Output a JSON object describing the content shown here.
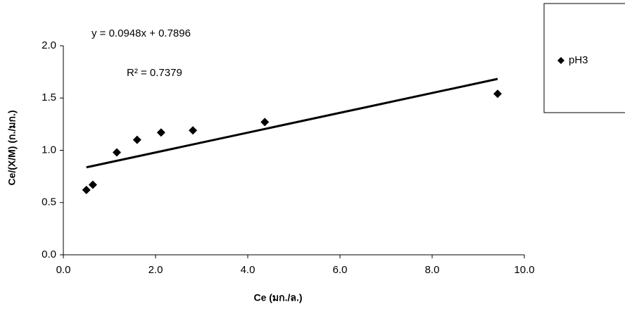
{
  "chart_data": {
    "type": "scatter",
    "x_label": "Ce (มก./ล.)",
    "y_label": "Ce/(X/M) (ก./มก.)",
    "equation": "y = 0.0948x + 0.7896",
    "r_squared": "R² = 0.7379",
    "trendline": {
      "slope": 0.0948,
      "intercept": 0.7896
    },
    "series": [
      {
        "name": "pH3",
        "color": "#000000",
        "x": [
          0.5,
          0.64,
          1.16,
          1.6,
          2.12,
          2.81,
          4.37,
          9.42
        ],
        "values": [
          0.62,
          0.67,
          0.98,
          1.1,
          1.17,
          1.19,
          1.27,
          1.54
        ]
      }
    ],
    "xlim": [
      0,
      10
    ],
    "xticks": [
      {
        "value": 0,
        "label": "0.0"
      },
      {
        "value": 2,
        "label": "2.0"
      },
      {
        "value": 4,
        "label": "4.0"
      },
      {
        "value": 6,
        "label": "6.0"
      },
      {
        "value": 8,
        "label": "8.0"
      },
      {
        "value": 10,
        "label": "10.0"
      }
    ],
    "ylim": [
      0,
      2
    ],
    "yticks": [
      {
        "value": 0,
        "label": "0.0"
      },
      0.5,
      {
        "value": 1,
        "label": "1.0"
      },
      1.5,
      {
        "value": 2,
        "label": "2.0"
      }
    ],
    "grid": false,
    "legend": "right"
  }
}
